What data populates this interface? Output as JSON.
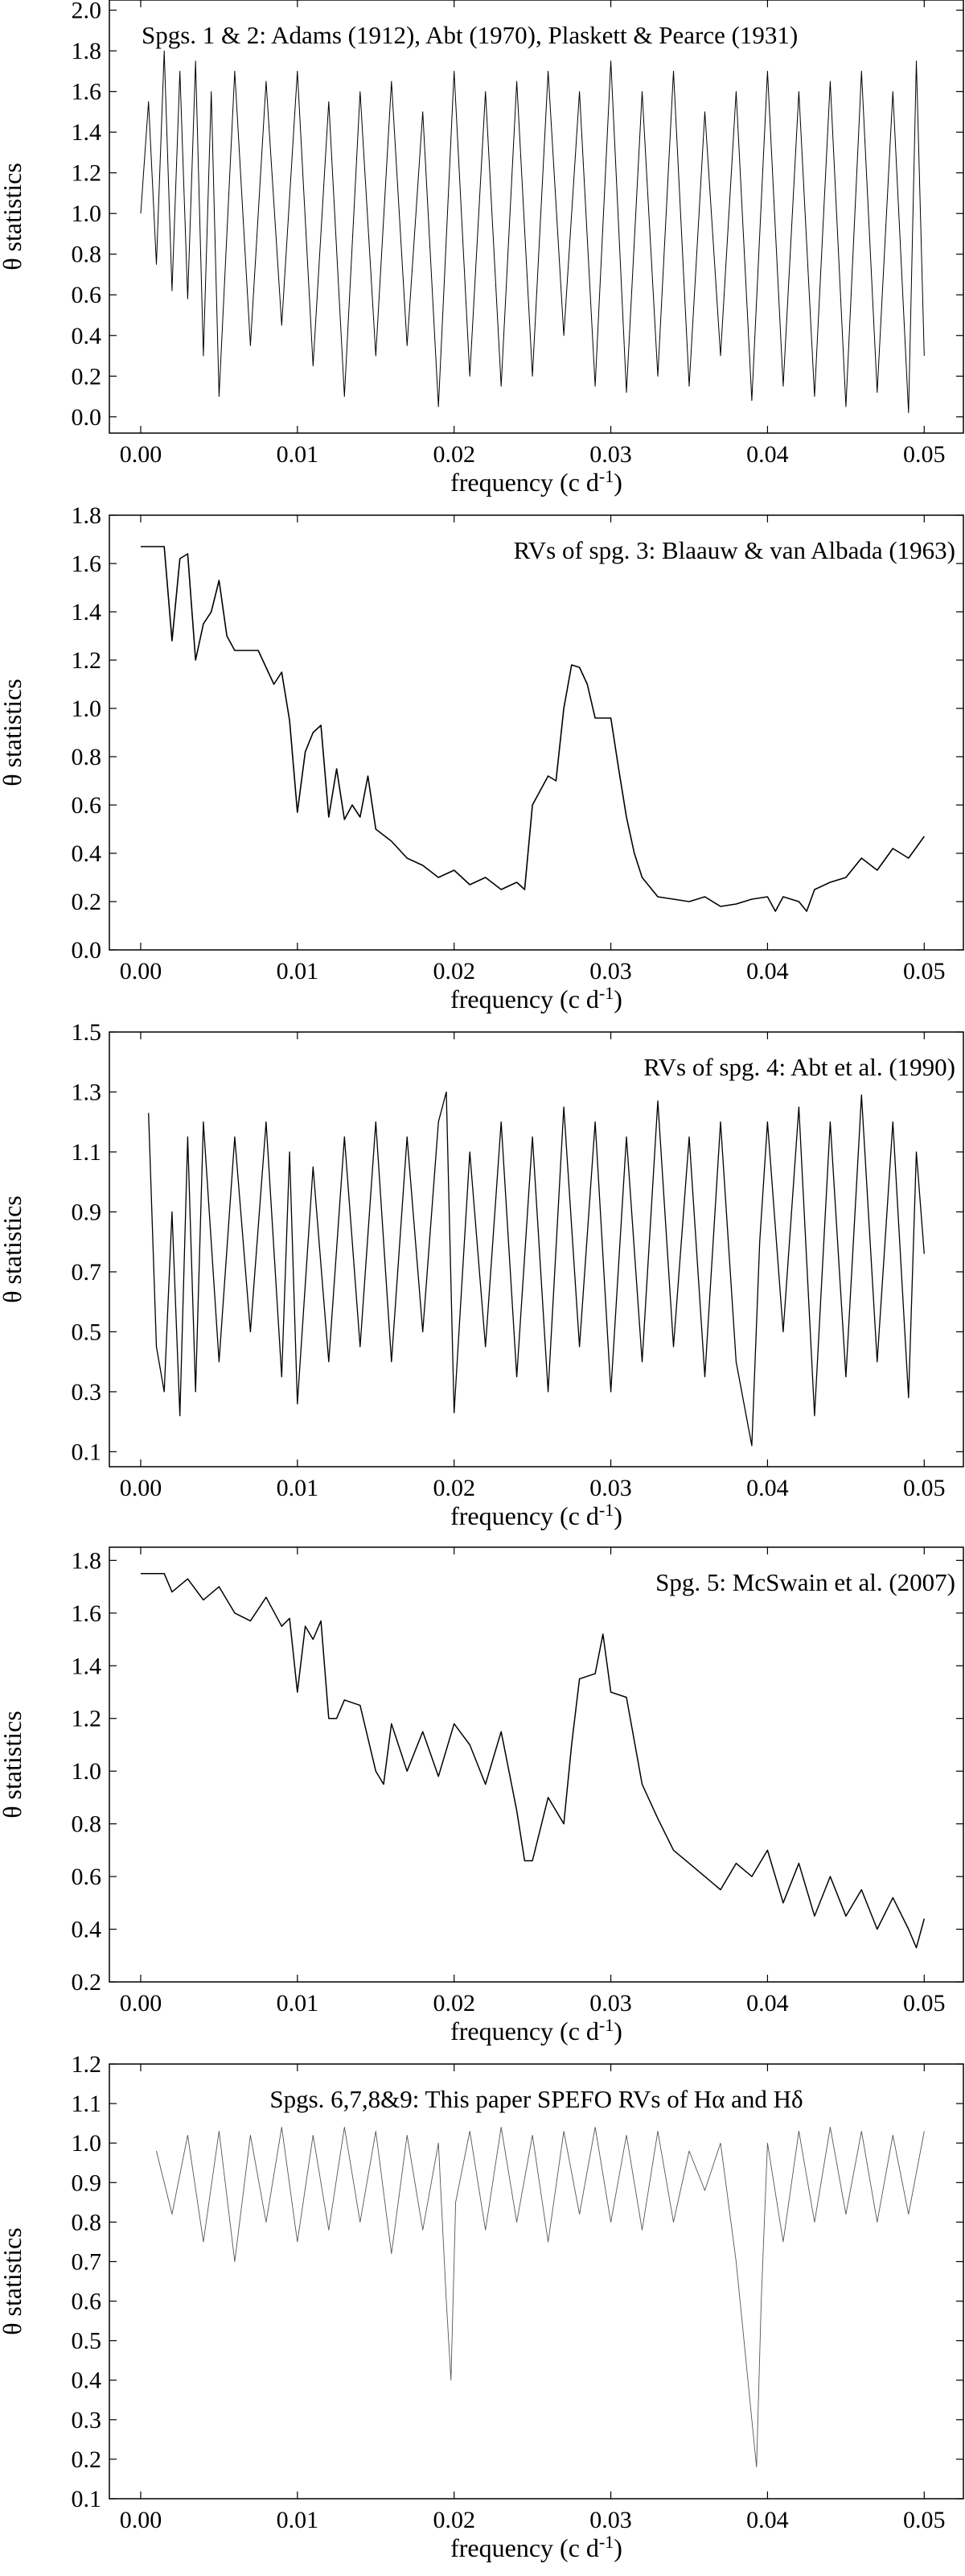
{
  "figure": {
    "xlabel": "frequency (c d",
    "xlabel_sup": "-1",
    "xlabel_close": ")",
    "ylabel": "θ  statistics"
  },
  "chart_data": [
    {
      "type": "line",
      "title": "Spgs. 1 & 2: Adams (1912), Abt (1970), Plaskett & Pearce (1931)",
      "xlabel": "frequency (c d-1)",
      "ylabel": "θ  statistics",
      "xlim": [
        -0.002,
        0.0525
      ],
      "ylim": [
        -0.08,
        2.05
      ],
      "xticks": [
        0.0,
        0.01,
        0.02,
        0.03,
        0.04,
        0.05
      ],
      "xtick_labels": [
        "0.00",
        "0.01",
        "0.02",
        "0.03",
        "0.04",
        "0.05"
      ],
      "yticks": [
        0.0,
        0.2,
        0.4,
        0.6,
        0.8,
        1.0,
        1.2,
        1.4,
        1.6,
        1.8,
        2.0
      ],
      "ytick_labels": [
        "0.0",
        "0.2",
        "0.4",
        "0.6",
        "0.8",
        "1.0",
        "1.2",
        "1.4",
        "1.6",
        "1.8",
        "2.0"
      ],
      "title_align": "left",
      "series": [
        {
          "color": "#000000",
          "stroke_width": 1.0,
          "x": [
            0.0,
            0.0005,
            0.001,
            0.0015,
            0.002,
            0.0025,
            0.003,
            0.0035,
            0.004,
            0.0045,
            0.005,
            0.006,
            0.007,
            0.008,
            0.009,
            0.01,
            0.011,
            0.012,
            0.013,
            0.014,
            0.015,
            0.016,
            0.017,
            0.018,
            0.019,
            0.02,
            0.021,
            0.022,
            0.023,
            0.024,
            0.025,
            0.026,
            0.027,
            0.028,
            0.029,
            0.03,
            0.031,
            0.032,
            0.033,
            0.034,
            0.035,
            0.036,
            0.037,
            0.038,
            0.039,
            0.04,
            0.041,
            0.042,
            0.043,
            0.044,
            0.045,
            0.046,
            0.047,
            0.048,
            0.049,
            0.0495,
            0.05
          ],
          "y": [
            1.0,
            1.55,
            0.75,
            1.8,
            0.62,
            1.7,
            0.58,
            1.75,
            0.3,
            1.6,
            0.1,
            1.7,
            0.35,
            1.65,
            0.45,
            1.7,
            0.25,
            1.55,
            0.1,
            1.6,
            0.3,
            1.65,
            0.35,
            1.5,
            0.05,
            1.7,
            0.2,
            1.6,
            0.15,
            1.65,
            0.2,
            1.7,
            0.4,
            1.6,
            0.15,
            1.75,
            0.12,
            1.6,
            0.2,
            1.7,
            0.15,
            1.5,
            0.3,
            1.6,
            0.08,
            1.7,
            0.15,
            1.6,
            0.1,
            1.65,
            0.05,
            1.7,
            0.12,
            1.6,
            0.02,
            1.75,
            0.3
          ]
        }
      ]
    },
    {
      "type": "line",
      "title": "RVs of spg. 3: Blaauw & van Albada (1963)",
      "xlabel": "frequency (c d-1)",
      "ylabel": "θ  statistics",
      "xlim": [
        -0.002,
        0.0525
      ],
      "ylim": [
        0.0,
        1.8
      ],
      "xticks": [
        0.0,
        0.01,
        0.02,
        0.03,
        0.04,
        0.05
      ],
      "xtick_labels": [
        "0.00",
        "0.01",
        "0.02",
        "0.03",
        "0.04",
        "0.05"
      ],
      "yticks": [
        0.0,
        0.2,
        0.4,
        0.6,
        0.8,
        1.0,
        1.2,
        1.4,
        1.6,
        1.8
      ],
      "ytick_labels": [
        "0.0",
        "0.2",
        "0.4",
        "0.6",
        "0.8",
        "1.0",
        "1.2",
        "1.4",
        "1.6",
        "1.8"
      ],
      "title_align": "right",
      "series": [
        {
          "color": "#000000",
          "stroke_width": 1.6,
          "x": [
            0.0,
            0.0015,
            0.002,
            0.0025,
            0.003,
            0.0035,
            0.004,
            0.0045,
            0.005,
            0.0055,
            0.006,
            0.0075,
            0.0085,
            0.009,
            0.0095,
            0.01,
            0.0105,
            0.011,
            0.0115,
            0.012,
            0.0125,
            0.013,
            0.0135,
            0.014,
            0.0145,
            0.015,
            0.016,
            0.017,
            0.018,
            0.019,
            0.02,
            0.021,
            0.022,
            0.023,
            0.024,
            0.0245,
            0.025,
            0.026,
            0.0265,
            0.027,
            0.0275,
            0.028,
            0.0285,
            0.029,
            0.0295,
            0.03,
            0.0305,
            0.031,
            0.0315,
            0.032,
            0.033,
            0.034,
            0.035,
            0.036,
            0.037,
            0.038,
            0.039,
            0.04,
            0.0405,
            0.041,
            0.042,
            0.0425,
            0.043,
            0.044,
            0.045,
            0.046,
            0.047,
            0.048,
            0.049,
            0.05
          ],
          "y": [
            1.67,
            1.67,
            1.28,
            1.62,
            1.64,
            1.2,
            1.35,
            1.4,
            1.53,
            1.3,
            1.24,
            1.24,
            1.1,
            1.15,
            0.95,
            0.57,
            0.82,
            0.9,
            0.93,
            0.55,
            0.75,
            0.54,
            0.6,
            0.55,
            0.72,
            0.5,
            0.45,
            0.38,
            0.35,
            0.3,
            0.33,
            0.27,
            0.3,
            0.25,
            0.28,
            0.25,
            0.6,
            0.72,
            0.7,
            1.0,
            1.18,
            1.17,
            1.1,
            0.96,
            0.96,
            0.96,
            0.75,
            0.55,
            0.4,
            0.3,
            0.22,
            0.21,
            0.2,
            0.22,
            0.18,
            0.19,
            0.21,
            0.22,
            0.16,
            0.22,
            0.2,
            0.16,
            0.25,
            0.28,
            0.3,
            0.38,
            0.33,
            0.42,
            0.38,
            0.47
          ]
        }
      ]
    },
    {
      "type": "line",
      "title": "RVs of spg. 4: Abt et al. (1990)",
      "xlabel": "frequency (c d-1)",
      "ylabel": "θ  statistics",
      "xlim": [
        -0.002,
        0.0525
      ],
      "ylim": [
        0.05,
        1.5
      ],
      "xticks": [
        0.0,
        0.01,
        0.02,
        0.03,
        0.04,
        0.05
      ],
      "xtick_labels": [
        "0.00",
        "0.01",
        "0.02",
        "0.03",
        "0.04",
        "0.05"
      ],
      "yticks": [
        0.1,
        0.3,
        0.5,
        0.7,
        0.9,
        1.1,
        1.3,
        1.5
      ],
      "ytick_labels": [
        "0.1",
        "0.3",
        "0.5",
        "0.7",
        "0.9",
        "1.1",
        "1.3",
        "1.5"
      ],
      "title_align": "right",
      "series": [
        {
          "color": "#000000",
          "stroke_width": 1.3,
          "x": [
            0.0005,
            0.001,
            0.0015,
            0.002,
            0.0025,
            0.003,
            0.0035,
            0.004,
            0.005,
            0.006,
            0.007,
            0.008,
            0.009,
            0.0095,
            0.01,
            0.011,
            0.012,
            0.013,
            0.014,
            0.015,
            0.016,
            0.017,
            0.018,
            0.019,
            0.0195,
            0.02,
            0.021,
            0.022,
            0.023,
            0.024,
            0.025,
            0.026,
            0.027,
            0.028,
            0.029,
            0.03,
            0.031,
            0.032,
            0.033,
            0.034,
            0.035,
            0.036,
            0.037,
            0.038,
            0.039,
            0.0395,
            0.04,
            0.041,
            0.042,
            0.043,
            0.044,
            0.045,
            0.046,
            0.047,
            0.048,
            0.049,
            0.0495,
            0.05
          ],
          "y": [
            1.23,
            0.45,
            0.3,
            0.9,
            0.22,
            1.15,
            0.3,
            1.2,
            0.4,
            1.15,
            0.5,
            1.2,
            0.35,
            1.1,
            0.26,
            1.05,
            0.4,
            1.15,
            0.45,
            1.2,
            0.4,
            1.15,
            0.5,
            1.2,
            1.3,
            0.23,
            1.1,
            0.45,
            1.2,
            0.35,
            1.15,
            0.3,
            1.25,
            0.45,
            1.2,
            0.3,
            1.15,
            0.4,
            1.27,
            0.45,
            1.15,
            0.35,
            1.2,
            0.4,
            0.12,
            0.8,
            1.2,
            0.5,
            1.25,
            0.22,
            1.2,
            0.35,
            1.29,
            0.4,
            1.2,
            0.28,
            1.1,
            0.76
          ]
        }
      ]
    },
    {
      "type": "line",
      "title": "Spg. 5: McSwain et al. (2007)",
      "xlabel": "frequency (c d-1)",
      "ylabel": "θ  statistics",
      "xlim": [
        -0.002,
        0.0525
      ],
      "ylim": [
        0.2,
        1.85
      ],
      "xticks": [
        0.0,
        0.01,
        0.02,
        0.03,
        0.04,
        0.05
      ],
      "xtick_labels": [
        "0.00",
        "0.01",
        "0.02",
        "0.03",
        "0.04",
        "0.05"
      ],
      "yticks": [
        0.2,
        0.4,
        0.6,
        0.8,
        1.0,
        1.2,
        1.4,
        1.6,
        1.8
      ],
      "ytick_labels": [
        "0.2",
        "0.4",
        "0.6",
        "0.8",
        "1.0",
        "1.2",
        "1.4",
        "1.6",
        "1.8"
      ],
      "title_align": "right",
      "series": [
        {
          "color": "#000000",
          "stroke_width": 1.5,
          "x": [
            0.0,
            0.0015,
            0.002,
            0.003,
            0.004,
            0.005,
            0.006,
            0.007,
            0.008,
            0.009,
            0.0095,
            0.01,
            0.0105,
            0.011,
            0.0115,
            0.012,
            0.0125,
            0.013,
            0.014,
            0.015,
            0.0155,
            0.016,
            0.017,
            0.018,
            0.019,
            0.02,
            0.021,
            0.022,
            0.023,
            0.024,
            0.0245,
            0.025,
            0.026,
            0.027,
            0.0275,
            0.028,
            0.029,
            0.0295,
            0.03,
            0.031,
            0.032,
            0.033,
            0.034,
            0.035,
            0.036,
            0.037,
            0.038,
            0.039,
            0.04,
            0.041,
            0.042,
            0.043,
            0.044,
            0.045,
            0.046,
            0.047,
            0.048,
            0.049,
            0.0495,
            0.05
          ],
          "y": [
            1.75,
            1.75,
            1.68,
            1.73,
            1.65,
            1.7,
            1.6,
            1.57,
            1.66,
            1.55,
            1.58,
            1.3,
            1.55,
            1.5,
            1.57,
            1.2,
            1.2,
            1.27,
            1.25,
            1.0,
            0.95,
            1.18,
            1.0,
            1.15,
            0.98,
            1.18,
            1.1,
            0.95,
            1.15,
            0.85,
            0.66,
            0.66,
            0.9,
            0.8,
            1.1,
            1.35,
            1.37,
            1.52,
            1.3,
            1.28,
            0.95,
            0.82,
            0.7,
            0.65,
            0.6,
            0.55,
            0.65,
            0.6,
            0.7,
            0.5,
            0.65,
            0.45,
            0.6,
            0.45,
            0.55,
            0.4,
            0.52,
            0.4,
            0.33,
            0.44
          ]
        }
      ]
    },
    {
      "type": "line",
      "title": "Spgs. 6,7,8&9: This paper SPEFO RVs of Hα and Hδ",
      "xlabel": "frequency (c d-1)",
      "ylabel": "θ  statistics",
      "xlim": [
        -0.002,
        0.0525
      ],
      "ylim": [
        0.1,
        1.2
      ],
      "xticks": [
        0.0,
        0.01,
        0.02,
        0.03,
        0.04,
        0.05
      ],
      "xtick_labels": [
        "0.00",
        "0.01",
        "0.02",
        "0.03",
        "0.04",
        "0.05"
      ],
      "yticks": [
        0.1,
        0.2,
        0.3,
        0.4,
        0.5,
        0.6,
        0.7,
        0.8,
        0.9,
        1.0,
        1.1,
        1.2
      ],
      "ytick_labels": [
        "0.1",
        "0.2",
        "0.3",
        "0.4",
        "0.5",
        "0.6",
        "0.7",
        "0.8",
        "0.9",
        "1.0",
        "1.1",
        "1.2"
      ],
      "title_align": "center",
      "series": [
        {
          "color": "#555555",
          "stroke_width": 0.9,
          "x": [
            0.001,
            0.002,
            0.003,
            0.004,
            0.005,
            0.006,
            0.007,
            0.008,
            0.009,
            0.01,
            0.011,
            0.012,
            0.013,
            0.014,
            0.015,
            0.016,
            0.017,
            0.018,
            0.019,
            0.0195,
            0.0198,
            0.0201,
            0.021,
            0.022,
            0.023,
            0.024,
            0.025,
            0.026,
            0.027,
            0.028,
            0.029,
            0.03,
            0.031,
            0.032,
            0.033,
            0.034,
            0.035,
            0.036,
            0.037,
            0.038,
            0.0385,
            0.039,
            0.0393,
            0.0396,
            0.04,
            0.041,
            0.042,
            0.043,
            0.044,
            0.045,
            0.046,
            0.047,
            0.048,
            0.049,
            0.05
          ],
          "y": [
            0.98,
            0.82,
            1.02,
            0.75,
            1.03,
            0.7,
            1.02,
            0.8,
            1.04,
            0.75,
            1.02,
            0.78,
            1.04,
            0.8,
            1.03,
            0.72,
            1.02,
            0.78,
            1.0,
            0.6,
            0.4,
            0.85,
            1.03,
            0.78,
            1.04,
            0.8,
            1.02,
            0.75,
            1.03,
            0.82,
            1.04,
            0.8,
            1.02,
            0.78,
            1.03,
            0.8,
            0.98,
            0.88,
            1.0,
            0.7,
            0.5,
            0.3,
            0.18,
            0.6,
            1.0,
            0.75,
            1.03,
            0.8,
            1.04,
            0.82,
            1.03,
            0.8,
            1.02,
            0.82,
            1.03
          ]
        }
      ]
    }
  ]
}
